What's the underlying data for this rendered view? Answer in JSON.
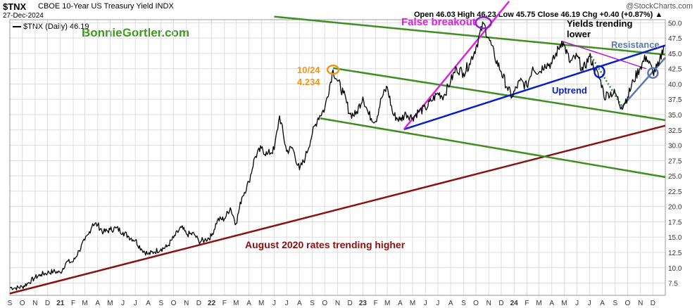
{
  "header": {
    "symbol": "$TNX",
    "description": "CBOE 10-Year US Treasury Yield INDX",
    "date": "27-Dec-2024",
    "watermark": "@StockCharts.com",
    "ohlc": "Open 46.03  High 46.23  Low 45.75  Close 46.19  Chg +0.40 (+0.87%) ▲",
    "legend": "$TNX (Daily) 46.19",
    "brand": "BonnieGortler.com"
  },
  "colors": {
    "price": "#000000",
    "green_channel": "#3e8e22",
    "uptrend": "#0a1ec8",
    "magenta": "#e020e0",
    "long_trend": "#8b1010",
    "resistance_blue": "#1a2ad0",
    "dotted_green": "#2e8a2e",
    "purple_line": "#b020c0",
    "orange": "#f0961e",
    "label_blue": "#5a78b4",
    "grid": "#dddddd",
    "axis_text": "#333333"
  },
  "chart_data": {
    "type": "line",
    "title": "$TNX CBOE 10-Year US Treasury Yield INDX",
    "series": [
      {
        "name": "$TNX (Daily) 46.19"
      }
    ],
    "y_ticks": [
      7.5,
      10.0,
      12.5,
      15.0,
      17.5,
      20.0,
      22.5,
      25.0,
      27.5,
      30.0,
      32.5,
      35.0,
      37.5,
      40.0,
      42.5,
      45.0,
      47.5,
      50.0
    ],
    "ylim": [
      5.5,
      50.5
    ],
    "x_ticks": [
      "S",
      "O",
      "N",
      "D",
      "21",
      "F",
      "M",
      "A",
      "M",
      "J",
      "J",
      "A",
      "S",
      "O",
      "N",
      "D",
      "22",
      "F",
      "M",
      "A",
      "M",
      "J",
      "J",
      "A",
      "S",
      "O",
      "N",
      "D",
      "23",
      "F",
      "M",
      "A",
      "M",
      "J",
      "J",
      "A",
      "S",
      "O",
      "N",
      "D",
      "24",
      "F",
      "M",
      "A",
      "M",
      "J",
      "J",
      "A",
      "S",
      "O",
      "N",
      "D"
    ],
    "year_ticks": [
      "21",
      "22",
      "23",
      "24"
    ],
    "grid": true,
    "points": [
      [
        "2020-09-01",
        6.8
      ],
      [
        "2020-09-15",
        6.7
      ],
      [
        "2020-10-01",
        6.9
      ],
      [
        "2020-10-15",
        7.5
      ],
      [
        "2020-11-01",
        8.4
      ],
      [
        "2020-11-15",
        8.9
      ],
      [
        "2020-12-01",
        9.2
      ],
      [
        "2020-12-15",
        9.4
      ],
      [
        "2021-01-01",
        9.2
      ],
      [
        "2021-01-15",
        10.9
      ],
      [
        "2021-02-01",
        11.0
      ],
      [
        "2021-02-15",
        12.8
      ],
      [
        "2021-03-01",
        14.5
      ],
      [
        "2021-03-10",
        15.5
      ],
      [
        "2021-03-20",
        17.2
      ],
      [
        "2021-04-01",
        17.0
      ],
      [
        "2021-04-15",
        15.8
      ],
      [
        "2021-05-01",
        16.2
      ],
      [
        "2021-05-15",
        16.5
      ],
      [
        "2021-06-01",
        15.8
      ],
      [
        "2021-06-15",
        15.1
      ],
      [
        "2021-07-01",
        14.5
      ],
      [
        "2021-07-15",
        13.1
      ],
      [
        "2021-08-01",
        12.2
      ],
      [
        "2021-08-15",
        12.6
      ],
      [
        "2021-09-01",
        13.1
      ],
      [
        "2021-09-15",
        13.4
      ],
      [
        "2021-10-01",
        14.9
      ],
      [
        "2021-10-20",
        16.6
      ],
      [
        "2021-11-01",
        15.5
      ],
      [
        "2021-11-20",
        15.5
      ],
      [
        "2021-12-01",
        14.3
      ],
      [
        "2021-12-15",
        14.5
      ],
      [
        "2022-01-01",
        15.2
      ],
      [
        "2022-01-15",
        17.8
      ],
      [
        "2022-02-01",
        18.0
      ],
      [
        "2022-02-15",
        19.8
      ],
      [
        "2022-03-01",
        17.2
      ],
      [
        "2022-03-15",
        21.5
      ],
      [
        "2022-04-01",
        24.0
      ],
      [
        "2022-04-15",
        28.0
      ],
      [
        "2022-05-01",
        29.5
      ],
      [
        "2022-05-15",
        28.5
      ],
      [
        "2022-06-01",
        29.3
      ],
      [
        "2022-06-14",
        34.8
      ],
      [
        "2022-07-01",
        29.0
      ],
      [
        "2022-07-15",
        29.6
      ],
      [
        "2022-08-01",
        26.0
      ],
      [
        "2022-08-15",
        28.0
      ],
      [
        "2022-09-01",
        31.9
      ],
      [
        "2022-09-15",
        34.5
      ],
      [
        "2022-10-01",
        36.0
      ],
      [
        "2022-10-21",
        42.3
      ],
      [
        "2022-11-01",
        40.5
      ],
      [
        "2022-11-15",
        38.5
      ],
      [
        "2022-12-01",
        35.1
      ],
      [
        "2022-12-15",
        35.0
      ],
      [
        "2023-01-01",
        37.9
      ],
      [
        "2023-01-15",
        35.0
      ],
      [
        "2023-02-01",
        33.9
      ],
      [
        "2023-02-15",
        37.7
      ],
      [
        "2023-03-01",
        39.5
      ],
      [
        "2023-03-15",
        35.0
      ],
      [
        "2023-04-01",
        34.1
      ],
      [
        "2023-04-15",
        35.2
      ],
      [
        "2023-05-01",
        34.5
      ],
      [
        "2023-05-15",
        35.5
      ],
      [
        "2023-06-01",
        36.0
      ],
      [
        "2023-06-15",
        37.2
      ],
      [
        "2023-07-01",
        38.5
      ],
      [
        "2023-07-15",
        38.0
      ],
      [
        "2023-08-01",
        40.5
      ],
      [
        "2023-08-15",
        42.6
      ],
      [
        "2023-09-01",
        41.8
      ],
      [
        "2023-09-15",
        43.3
      ],
      [
        "2023-10-01",
        46.0
      ],
      [
        "2023-10-19",
        49.9
      ],
      [
        "2023-11-01",
        47.5
      ],
      [
        "2023-11-15",
        44.5
      ],
      [
        "2023-12-01",
        42.0
      ],
      [
        "2023-12-15",
        39.5
      ],
      [
        "2023-12-27",
        37.9
      ],
      [
        "2024-01-15",
        40.5
      ],
      [
        "2024-02-01",
        39.6
      ],
      [
        "2024-02-15",
        42.8
      ],
      [
        "2024-03-01",
        41.9
      ],
      [
        "2024-03-15",
        43.2
      ],
      [
        "2024-04-01",
        43.3
      ],
      [
        "2024-04-25",
        47.0
      ],
      [
        "2024-05-01",
        46.3
      ],
      [
        "2024-05-15",
        43.5
      ],
      [
        "2024-06-01",
        44.5
      ],
      [
        "2024-06-15",
        42.2
      ],
      [
        "2024-07-01",
        44.5
      ],
      [
        "2024-07-15",
        42.3
      ],
      [
        "2024-08-01",
        39.8
      ],
      [
        "2024-08-05",
        37.8
      ],
      [
        "2024-08-15",
        38.5
      ],
      [
        "2024-09-01",
        38.5
      ],
      [
        "2024-09-16",
        36.2
      ],
      [
        "2024-10-01",
        37.9
      ],
      [
        "2024-10-15",
        40.5
      ],
      [
        "2024-11-01",
        42.8
      ],
      [
        "2024-11-15",
        44.5
      ],
      [
        "2024-12-01",
        41.9
      ],
      [
        "2024-12-15",
        43.0
      ],
      [
        "2024-12-27",
        46.19
      ]
    ],
    "annotations": [
      {
        "text": "False breakout",
        "color": "#e020e0"
      },
      {
        "text": "Yields trending lower",
        "color": "#000000"
      },
      {
        "text": "Resistance",
        "color": "#5a78b4"
      },
      {
        "text": "10/24",
        "color": "#f0961e"
      },
      {
        "text": "4.234",
        "color": "#f0961e"
      },
      {
        "text": "Uptrend",
        "color": "#0a1ec8"
      },
      {
        "text": "August 2020 rates trending higher",
        "color": "#8b1010"
      }
    ],
    "trendlines": [
      {
        "name": "long-term-support",
        "from": [
          "2020-09-01",
          5.8
        ],
        "to": [
          "2024-12-31",
          33.2
        ]
      },
      {
        "name": "channel-upper",
        "from": [
          "2022-06-01",
          51.0
        ],
        "to": [
          "2024-12-31",
          44.8
        ]
      },
      {
        "name": "channel-middle",
        "from": [
          "2022-10-21",
          42.6
        ],
        "to": [
          "2024-12-31",
          34.1
        ]
      },
      {
        "name": "channel-lower",
        "from": [
          "2022-09-20",
          34.4
        ],
        "to": [
          "2024-12-31",
          24.8
        ]
      },
      {
        "name": "uptrend",
        "from": [
          "2023-04-10",
          32.6
        ],
        "to": [
          "2024-12-31",
          46.3
        ]
      },
      {
        "name": "false-breakout",
        "from": [
          "2023-04-10",
          32.6
        ],
        "to": [
          "2023-12-20",
          53.5
        ]
      },
      {
        "name": "falling-resistance",
        "from": [
          "2024-04-25",
          47.0
        ],
        "to": [
          "2024-11-15",
          42.5
        ]
      },
      {
        "name": "dotted-decline",
        "from": [
          "2024-07-01",
          45.0
        ],
        "to": [
          "2024-09-16",
          36.5
        ]
      },
      {
        "name": "rising-support",
        "from": [
          "2024-09-16",
          36.2
        ],
        "to": [
          "2024-12-31",
          44.3
        ]
      }
    ],
    "markers": [
      {
        "name": "orange-circle",
        "at": [
          "2022-10-21",
          42.34
        ]
      },
      {
        "name": "purple-circle",
        "at": [
          "2023-10-19",
          50.0
        ]
      },
      {
        "name": "blue-circle",
        "at": [
          "2024-07-25",
          42.0
        ]
      },
      {
        "name": "steel-blue-circle",
        "at": [
          "2024-12-01",
          41.8
        ]
      }
    ]
  }
}
